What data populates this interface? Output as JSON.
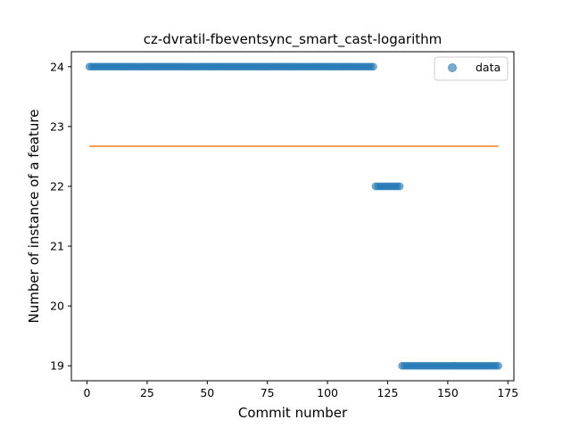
{
  "chart_data": {
    "type": "scatter",
    "title": "cz-dvratil-fbeventsync_smart_cast-logarithm",
    "xlabel": "Commit number",
    "ylabel": "Number of instance of a feature",
    "xlim": [
      -6.5,
      177.5
    ],
    "ylim": [
      18.75,
      24.25
    ],
    "xticks": [
      0,
      25,
      50,
      75,
      100,
      125,
      150,
      175
    ],
    "yticks": [
      19,
      20,
      21,
      22,
      23,
      24
    ],
    "grid": false,
    "legend_position": "top-right",
    "colors": {
      "data": "#1f77b4",
      "fit": "#ff7f0e"
    },
    "series": [
      {
        "name": "data",
        "kind": "scatter",
        "segments": [
          {
            "x_start": 1,
            "x_end": 119,
            "y": 24
          },
          {
            "x_start": 120,
            "x_end": 130,
            "y": 22
          },
          {
            "x_start": 131,
            "x_end": 171,
            "y": 19
          }
        ]
      },
      {
        "kind": "line",
        "x": [
          1,
          171
        ],
        "y": [
          22.67,
          22.67
        ]
      }
    ]
  }
}
